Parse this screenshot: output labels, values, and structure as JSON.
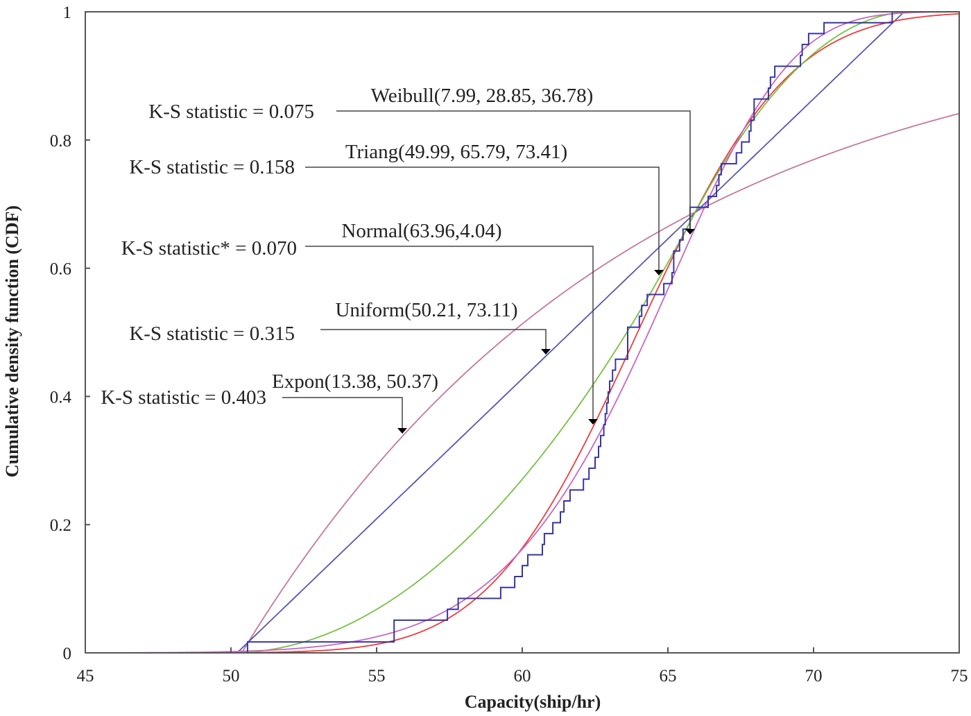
{
  "chart_data": {
    "type": "line",
    "xlabel": "Capacity(ship/hr)",
    "ylabel": "Cumulative density function (CDF)",
    "xlim": [
      45,
      75
    ],
    "ylim": [
      0,
      1
    ],
    "x_ticks": [
      "45",
      "50",
      "55",
      "60",
      "65",
      "70",
      "75"
    ],
    "y_ticks": [
      "0",
      "0.2",
      "0.4",
      "0.6",
      "0.8",
      "1"
    ],
    "grid": false,
    "series": [
      {
        "name": "Expon(13.38, 50.37)",
        "dist": "exponential",
        "params": {
          "lambda_inv": 13.38,
          "shift": 50.37
        },
        "ks_label": "K-S statistic = 0.403",
        "color": "#c4789a"
      },
      {
        "name": "Uniform(50.21, 73.11)",
        "dist": "uniform",
        "params": {
          "min": 50.21,
          "max": 73.11
        },
        "ks_label": "K-S statistic = 0.315",
        "color": "#5555b5"
      },
      {
        "name": "Normal(63.96,4.04)",
        "dist": "normal",
        "params": {
          "mean": 63.96,
          "sd": 4.04
        },
        "ks_label": "K-S statistic* = 0.070",
        "color": "#f03a3a"
      },
      {
        "name": "Triang(49.99, 65.79, 73.41)",
        "dist": "triangular",
        "params": {
          "min": 49.99,
          "mode": 65.79,
          "max": 73.41
        },
        "ks_label": "K-S statistic = 0.158",
        "color": "#77c040"
      },
      {
        "name": "Weibull(7.99, 28.85, 36.78)",
        "dist": "weibull",
        "params": {
          "shape": 7.99,
          "scale": 28.85,
          "shift": 36.78
        },
        "ks_label": "K-S statistic = 0.075",
        "color": "#c866c0"
      }
    ],
    "empirical": {
      "color": "#3535a5",
      "x": [
        45,
        50.57,
        55.6,
        57.43,
        57.8,
        59.26,
        59.74,
        60.0,
        60.19,
        60.69,
        60.76,
        61.05,
        61.31,
        61.43,
        61.64,
        62.1,
        62.29,
        62.5,
        62.62,
        62.69,
        62.8,
        62.85,
        62.9,
        62.95,
        63.0,
        63.1,
        63.2,
        63.62,
        64.02,
        64.1,
        64.29,
        64.86,
        65.14,
        65.2,
        65.4,
        65.52,
        65.76,
        66.38,
        66.67,
        66.75,
        66.83,
        67.35,
        67.53,
        67.79,
        67.85,
        67.96,
        68.45,
        68.52,
        68.67,
        69.55,
        69.61,
        69.83,
        70.36,
        72.7,
        73.05
      ],
      "y": [
        0,
        0.017,
        0.051,
        0.068,
        0.085,
        0.102,
        0.119,
        0.136,
        0.153,
        0.169,
        0.186,
        0.203,
        0.22,
        0.237,
        0.254,
        0.271,
        0.288,
        0.305,
        0.322,
        0.339,
        0.356,
        0.373,
        0.39,
        0.407,
        0.424,
        0.441,
        0.458,
        0.508,
        0.525,
        0.542,
        0.559,
        0.576,
        0.593,
        0.627,
        0.644,
        0.661,
        0.695,
        0.712,
        0.729,
        0.746,
        0.763,
        0.78,
        0.797,
        0.814,
        0.831,
        0.864,
        0.881,
        0.898,
        0.915,
        0.932,
        0.949,
        0.966,
        0.983,
        1.0,
        1.0
      ]
    }
  }
}
